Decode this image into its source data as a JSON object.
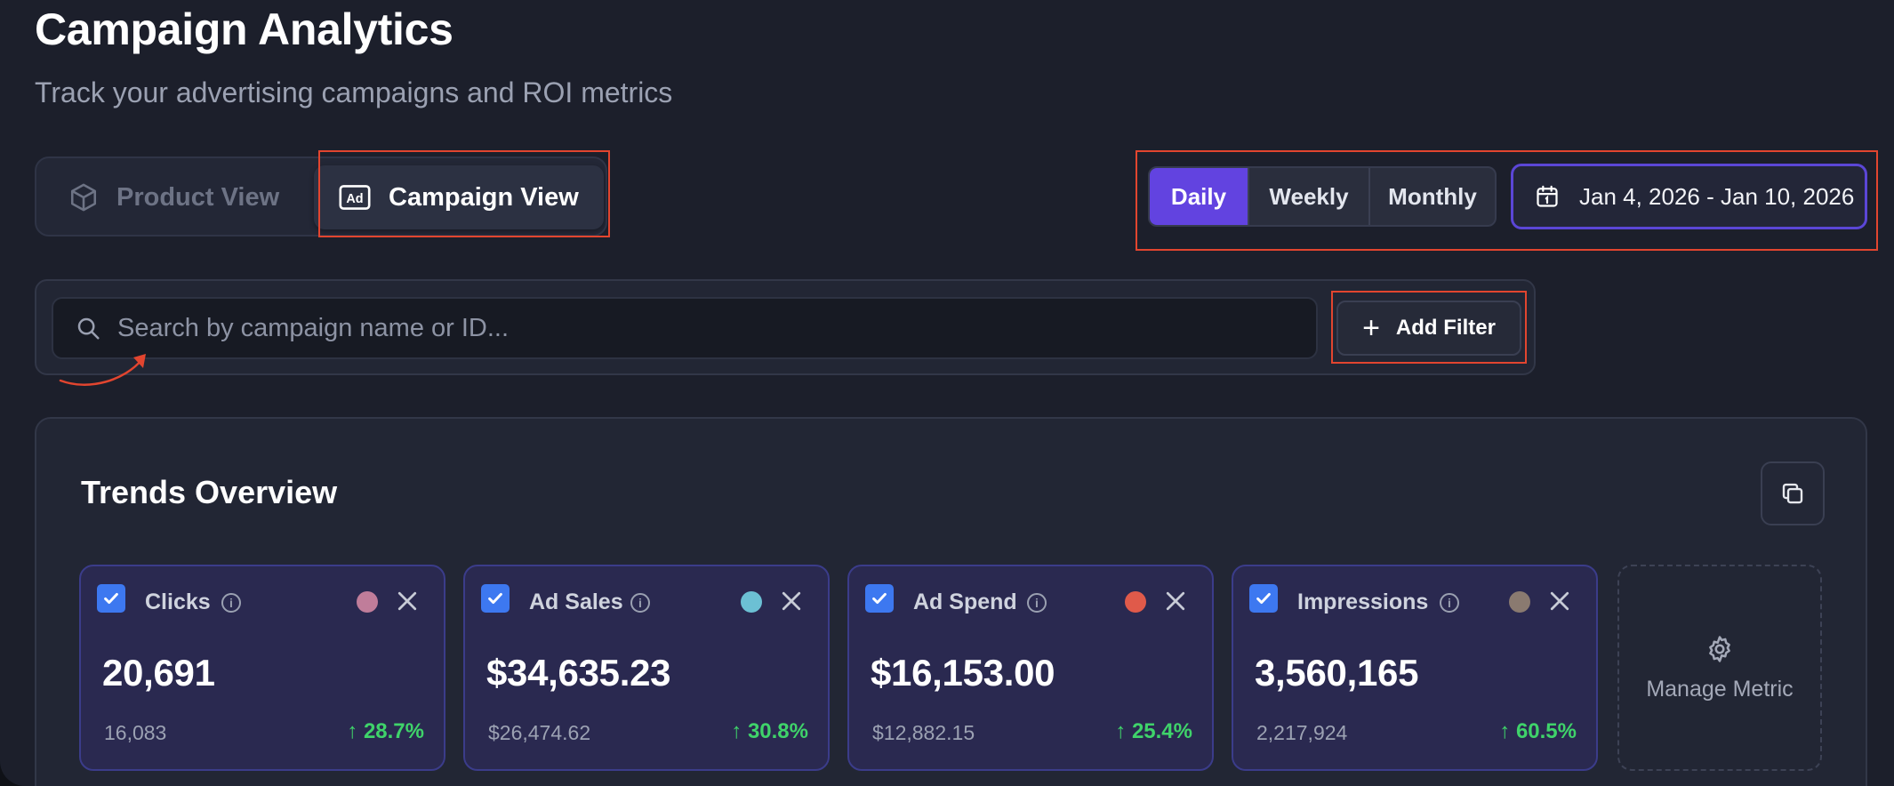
{
  "header": {
    "title": "Campaign Analytics",
    "subtitle": "Track your advertising campaigns and ROI metrics"
  },
  "view_toggle": {
    "product_label": "Product View",
    "campaign_label": "Campaign View",
    "active": "campaign"
  },
  "period": {
    "options": [
      "Daily",
      "Weekly",
      "Monthly"
    ],
    "active": "Daily"
  },
  "date_range": {
    "label": "Jan 4, 2026 - Jan 10, 2026"
  },
  "search": {
    "placeholder": "Search by campaign name or ID...",
    "value": ""
  },
  "add_filter": {
    "label": "Add Filter"
  },
  "trends": {
    "title": "Trends Overview",
    "metrics": [
      {
        "name": "Clicks",
        "value": "20,691",
        "previous": "16,083",
        "change": "28.7%",
        "color": "#c07d9a",
        "checked": true
      },
      {
        "name": "Ad Sales",
        "value": "$34,635.23",
        "previous": "$26,474.62",
        "change": "30.8%",
        "color": "#6cc0d4",
        "checked": true
      },
      {
        "name": "Ad Spend",
        "value": "$16,153.00",
        "previous": "$12,882.15",
        "change": "25.4%",
        "color": "#e05a4a",
        "checked": true
      },
      {
        "name": "Impressions",
        "value": "3,560,165",
        "previous": "2,217,924",
        "change": "60.5%",
        "color": "#8a7a70",
        "checked": true
      }
    ],
    "manage_label": "Manage Metric"
  },
  "colors": {
    "accent": "#6243e0",
    "positive": "#3fd36a",
    "annotation": "#e2452f"
  }
}
